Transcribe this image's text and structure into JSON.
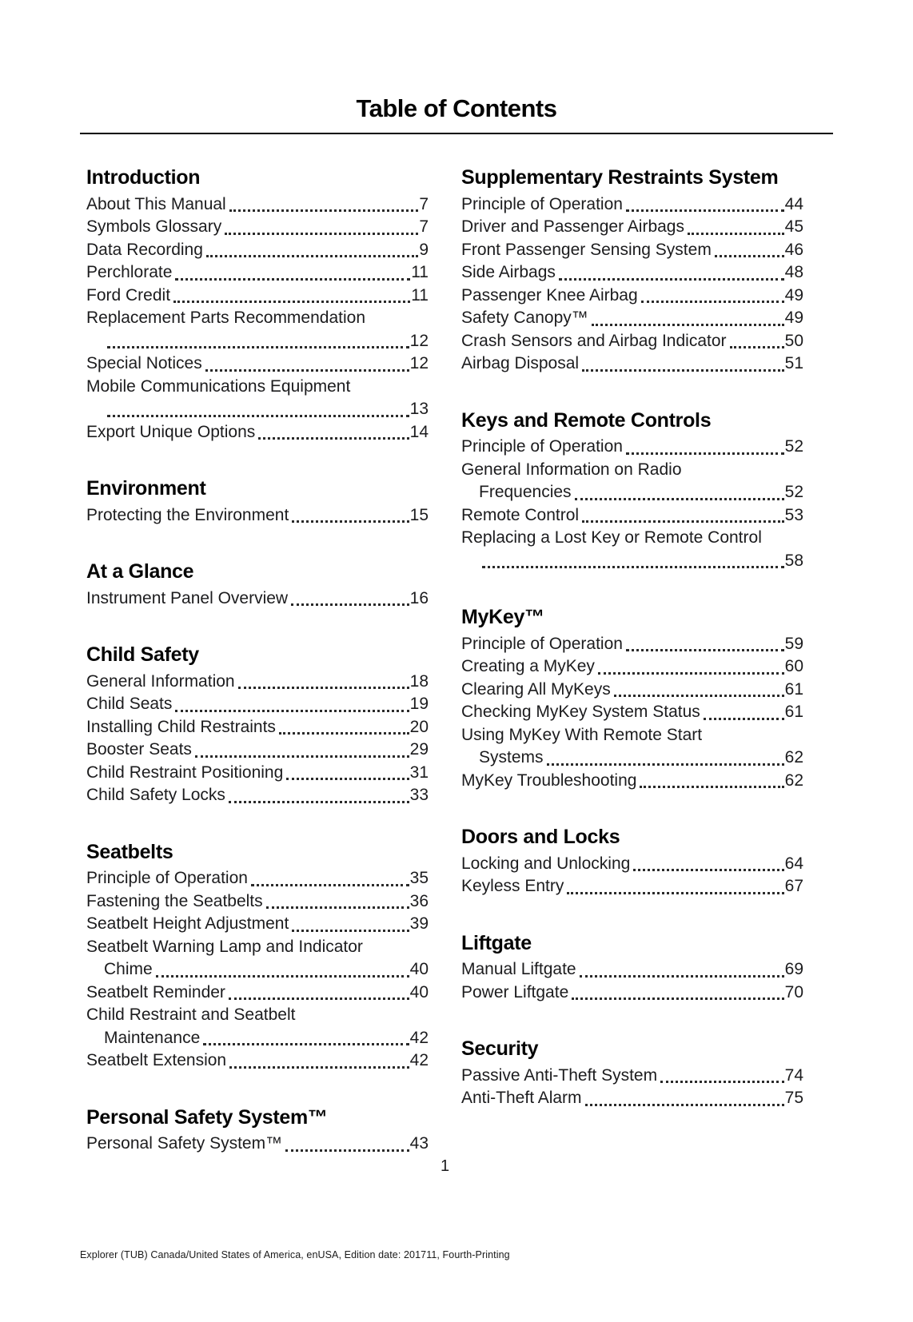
{
  "page": {
    "title": "Table of Contents",
    "page_number": "1",
    "footer": "Explorer (TUB) Canada/United States of America, enUSA, Edition date: 201711, Fourth-Printing"
  },
  "columns": [
    {
      "sections": [
        {
          "heading": "Introduction",
          "entries": [
            {
              "label": "About This Manual",
              "page": "7"
            },
            {
              "label": "Symbols Glossary",
              "page": "7"
            },
            {
              "label": "Data Recording",
              "page": "9"
            },
            {
              "label": "Perchlorate",
              "page": "11"
            },
            {
              "label": "Ford Credit",
              "page": "11"
            },
            {
              "label": "Replacement Parts Recommendation",
              "cont": "",
              "page": "12"
            },
            {
              "label": "Special Notices",
              "page": "12"
            },
            {
              "label": "Mobile Communications Equipment",
              "cont": "",
              "page": "13"
            },
            {
              "label": "Export Unique Options",
              "page": "14"
            }
          ]
        },
        {
          "heading": "Environment",
          "entries": [
            {
              "label": "Protecting the Environment",
              "page": "15"
            }
          ]
        },
        {
          "heading": "At a Glance",
          "entries": [
            {
              "label": "Instrument Panel Overview",
              "page": "16"
            }
          ]
        },
        {
          "heading": "Child Safety",
          "entries": [
            {
              "label": "General Information",
              "page": "18"
            },
            {
              "label": "Child Seats",
              "page": "19"
            },
            {
              "label": "Installing Child Restraints",
              "page": "20"
            },
            {
              "label": "Booster Seats",
              "page": "29"
            },
            {
              "label": "Child Restraint Positioning",
              "page": "31"
            },
            {
              "label": "Child Safety Locks",
              "page": "33"
            }
          ]
        },
        {
          "heading": "Seatbelts",
          "entries": [
            {
              "label": "Principle of Operation",
              "page": "35"
            },
            {
              "label": "Fastening the Seatbelts",
              "page": "36"
            },
            {
              "label": "Seatbelt Height Adjustment",
              "page": "39"
            },
            {
              "label": "Seatbelt Warning Lamp and Indicator",
              "cont": "Chime",
              "page": "40"
            },
            {
              "label": "Seatbelt Reminder",
              "page": "40"
            },
            {
              "label": "Child Restraint and Seatbelt",
              "cont": "Maintenance",
              "page": "42"
            },
            {
              "label": "Seatbelt Extension",
              "page": "42"
            }
          ]
        },
        {
          "heading": "Personal Safety System™",
          "entries": [
            {
              "label": "Personal Safety System™",
              "page": "43"
            }
          ]
        }
      ]
    },
    {
      "sections": [
        {
          "heading": "Supplementary Restraints System",
          "entries": [
            {
              "label": "Principle of Operation",
              "page": "44"
            },
            {
              "label": "Driver and Passenger Airbags",
              "page": "45"
            },
            {
              "label": "Front Passenger Sensing System",
              "page": "46"
            },
            {
              "label": "Side Airbags",
              "page": "48"
            },
            {
              "label": "Passenger Knee Airbag",
              "page": "49"
            },
            {
              "label": "Safety Canopy™",
              "page": "49"
            },
            {
              "label": "Crash Sensors and Airbag Indicator",
              "page": "50"
            },
            {
              "label": "Airbag Disposal",
              "page": "51"
            }
          ]
        },
        {
          "heading": "Keys and Remote Controls",
          "entries": [
            {
              "label": "Principle of Operation",
              "page": "52"
            },
            {
              "label": "General Information on Radio",
              "cont": "Frequencies",
              "page": "52"
            },
            {
              "label": "Remote Control",
              "page": "53"
            },
            {
              "label": "Replacing a Lost Key or Remote Control",
              "cont": "",
              "page": "58"
            }
          ]
        },
        {
          "heading": "MyKey™",
          "entries": [
            {
              "label": "Principle of Operation",
              "page": "59"
            },
            {
              "label": "Creating a MyKey",
              "page": "60"
            },
            {
              "label": "Clearing All MyKeys",
              "page": "61"
            },
            {
              "label": "Checking MyKey System Status",
              "page": "61"
            },
            {
              "label": "Using MyKey With Remote Start",
              "cont": "Systems",
              "page": "62"
            },
            {
              "label": "MyKey Troubleshooting",
              "page": "62"
            }
          ]
        },
        {
          "heading": "Doors and Locks",
          "entries": [
            {
              "label": "Locking and Unlocking",
              "page": "64"
            },
            {
              "label": "Keyless Entry",
              "page": "67"
            }
          ]
        },
        {
          "heading": "Liftgate",
          "entries": [
            {
              "label": "Manual Liftgate",
              "page": "69"
            },
            {
              "label": "Power Liftgate",
              "page": "70"
            }
          ]
        },
        {
          "heading": "Security",
          "entries": [
            {
              "label": "Passive Anti-Theft System",
              "page": "74"
            },
            {
              "label": "Anti-Theft Alarm",
              "page": "75"
            }
          ]
        }
      ]
    }
  ]
}
